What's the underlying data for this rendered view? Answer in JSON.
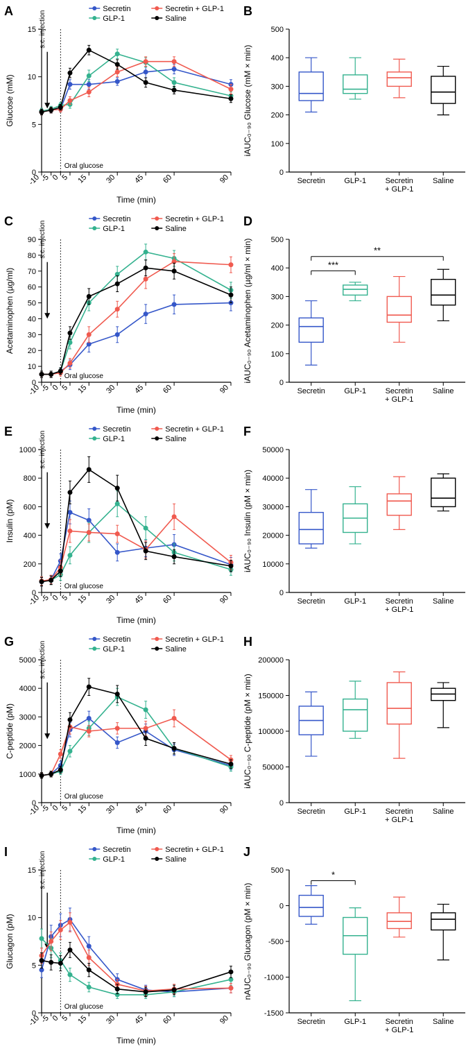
{
  "colors": {
    "secretin": "#3557c9",
    "glp1": "#34b28f",
    "combo": "#f05a4f",
    "saline": "#000000",
    "axis": "#000000"
  },
  "line_x": [
    -10,
    -5,
    0,
    5,
    15,
    30,
    45,
    60,
    90
  ],
  "line_x_ticks": [
    -10,
    -5,
    0,
    5,
    15,
    30,
    45,
    60,
    90
  ],
  "line_x_label": "Time (min)",
  "line_annot_injection": "s.c. injection",
  "line_annot_oral": "Oral glucose",
  "legend_labels": {
    "secretin": "Secretin",
    "glp1": "GLP-1",
    "combo": "Secretin + GLP-1",
    "saline": "Saline"
  },
  "box_categories": [
    "Secretin",
    "GLP-1",
    "Secretin\n+ GLP-1",
    "Saline"
  ],
  "panels": {
    "A": {
      "label": "A",
      "type": "line",
      "ylabel": "Glucose (mM)",
      "ylim": [
        0,
        15
      ],
      "yticks": [
        0,
        5,
        10,
        15
      ],
      "series": {
        "secretin": {
          "y": [
            6.4,
            6.5,
            6.6,
            9.2,
            9.2,
            9.5,
            10.5,
            10.8,
            9.2
          ],
          "err": [
            0.3,
            0.3,
            0.3,
            0.5,
            0.5,
            0.4,
            0.6,
            0.5,
            0.5
          ]
        },
        "glp1": {
          "y": [
            6.4,
            6.6,
            7.0,
            7.1,
            10.1,
            12.4,
            11.5,
            9.4,
            8.0
          ],
          "err": [
            0.3,
            0.3,
            0.3,
            0.4,
            0.6,
            0.5,
            0.5,
            0.5,
            0.4
          ]
        },
        "combo": {
          "y": [
            6.3,
            6.5,
            6.6,
            7.5,
            8.4,
            10.5,
            11.6,
            11.6,
            8.7
          ],
          "err": [
            0.3,
            0.3,
            0.3,
            0.4,
            0.5,
            0.5,
            0.5,
            0.5,
            0.5
          ]
        },
        "saline": {
          "y": [
            6.3,
            6.5,
            6.8,
            10.4,
            12.8,
            11.3,
            9.4,
            8.6,
            7.7
          ],
          "err": [
            0.3,
            0.3,
            0.3,
            0.5,
            0.5,
            0.5,
            0.5,
            0.4,
            0.4
          ]
        }
      }
    },
    "B": {
      "label": "B",
      "type": "box",
      "ylabel": "iAUC₀₋₉₀ Glucose (mM × min)",
      "ylim": [
        0,
        500
      ],
      "yticks": [
        0,
        100,
        200,
        300,
        400,
        500
      ],
      "boxes": {
        "secretin": {
          "min": 210,
          "q1": 250,
          "med": 275,
          "q3": 350,
          "max": 400
        },
        "glp1": {
          "min": 255,
          "q1": 275,
          "med": 290,
          "q3": 340,
          "max": 400
        },
        "combo": {
          "min": 260,
          "q1": 300,
          "med": 330,
          "q3": 350,
          "max": 395
        },
        "saline": {
          "min": 200,
          "q1": 240,
          "med": 280,
          "q3": 335,
          "max": 370
        }
      }
    },
    "C": {
      "label": "C",
      "type": "line",
      "ylabel": "Acetaminophen (µg/ml)",
      "ylim": [
        0,
        90
      ],
      "yticks": [
        0,
        10,
        20,
        30,
        40,
        50,
        60,
        70,
        80,
        90
      ],
      "series": {
        "secretin": {
          "y": [
            5,
            5,
            7,
            11,
            24,
            30,
            43,
            49,
            50
          ],
          "err": [
            2,
            2,
            2,
            3,
            5,
            5,
            6,
            6,
            5
          ]
        },
        "glp1": {
          "y": [
            5,
            5,
            7,
            25,
            50,
            68,
            82,
            78,
            58
          ],
          "err": [
            2,
            2,
            2,
            4,
            5,
            5,
            5,
            5,
            5
          ]
        },
        "combo": {
          "y": [
            5,
            5,
            6,
            12,
            30,
            46,
            65,
            76,
            74
          ],
          "err": [
            2,
            2,
            2,
            3,
            5,
            5,
            6,
            5,
            5
          ]
        },
        "saline": {
          "y": [
            5,
            5,
            7,
            31,
            54,
            62,
            72,
            70,
            55
          ],
          "err": [
            2,
            2,
            2,
            4,
            5,
            5,
            5,
            5,
            5
          ]
        }
      }
    },
    "D": {
      "label": "D",
      "type": "box",
      "ylabel": "iAUC₀₋₉₀ Acetaminophen (µg/ml × min)",
      "ylim": [
        0,
        500
      ],
      "yticks": [
        0,
        100,
        200,
        300,
        400,
        500
      ],
      "boxes": {
        "secretin": {
          "min": 60,
          "q1": 140,
          "med": 195,
          "q3": 225,
          "max": 285
        },
        "glp1": {
          "min": 285,
          "q1": 305,
          "med": 325,
          "q3": 340,
          "max": 350
        },
        "combo": {
          "min": 140,
          "q1": 210,
          "med": 235,
          "q3": 300,
          "max": 370
        },
        "saline": {
          "min": 215,
          "q1": 270,
          "med": 305,
          "q3": 360,
          "max": 395
        }
      },
      "sig": [
        {
          "from": 0,
          "to": 1,
          "y": 390,
          "label": "***"
        },
        {
          "from": 0,
          "to": 3,
          "y": 440,
          "label": "**"
        }
      ]
    },
    "E": {
      "label": "E",
      "type": "line",
      "ylabel": "Insulin (pM)",
      "ylim": [
        0,
        1000
      ],
      "yticks": [
        0,
        200,
        400,
        600,
        800,
        1000
      ],
      "series": {
        "secretin": {
          "y": [
            75,
            90,
            220,
            560,
            505,
            280,
            310,
            335,
            195
          ],
          "err": [
            30,
            30,
            50,
            80,
            80,
            60,
            60,
            70,
            50
          ]
        },
        "glp1": {
          "y": [
            80,
            85,
            125,
            260,
            420,
            620,
            450,
            280,
            160
          ],
          "err": [
            30,
            30,
            40,
            60,
            70,
            90,
            80,
            60,
            40
          ]
        },
        "combo": {
          "y": [
            80,
            90,
            175,
            430,
            420,
            410,
            300,
            530,
            210
          ],
          "err": [
            30,
            30,
            50,
            80,
            60,
            60,
            60,
            90,
            50
          ]
        },
        "saline": {
          "y": [
            75,
            85,
            150,
            700,
            860,
            730,
            290,
            250,
            185
          ],
          "err": [
            30,
            30,
            40,
            80,
            90,
            90,
            60,
            50,
            40
          ]
        }
      }
    },
    "F": {
      "label": "F",
      "type": "box",
      "ylabel": "iAUC₀₋₉₀ Insulin (pM × min)",
      "ylim": [
        0,
        50000
      ],
      "yticks": [
        0,
        10000,
        20000,
        30000,
        40000,
        50000
      ],
      "boxes": {
        "secretin": {
          "min": 15500,
          "q1": 17000,
          "med": 22000,
          "q3": 28000,
          "max": 36000
        },
        "glp1": {
          "min": 17000,
          "q1": 21000,
          "med": 26000,
          "q3": 31000,
          "max": 37000
        },
        "combo": {
          "min": 22000,
          "q1": 27000,
          "med": 32000,
          "q3": 34500,
          "max": 40500
        },
        "saline": {
          "min": 28500,
          "q1": 30000,
          "med": 33000,
          "q3": 40000,
          "max": 41500
        }
      }
    },
    "G": {
      "label": "G",
      "type": "line",
      "ylabel": "C-peptide (pM)",
      "ylim": [
        0,
        5000
      ],
      "yticks": [
        0,
        1000,
        2000,
        3000,
        4000,
        5000
      ],
      "series": {
        "secretin": {
          "y": [
            950,
            1000,
            1300,
            2550,
            2950,
            2100,
            2500,
            1850,
            1300
          ],
          "err": [
            100,
            100,
            150,
            250,
            250,
            200,
            250,
            200,
            150
          ]
        },
        "glp1": {
          "y": [
            950,
            1000,
            1100,
            1800,
            2600,
            3700,
            3250,
            1900,
            1250
          ],
          "err": [
            100,
            100,
            120,
            200,
            250,
            300,
            300,
            200,
            150
          ]
        },
        "combo": {
          "y": [
            950,
            1000,
            1700,
            2650,
            2500,
            2600,
            2600,
            2950,
            1500
          ],
          "err": [
            100,
            100,
            150,
            250,
            200,
            200,
            250,
            300,
            150
          ]
        },
        "saline": {
          "y": [
            950,
            1000,
            1150,
            2900,
            4050,
            3800,
            2250,
            1900,
            1350
          ],
          "err": [
            100,
            100,
            120,
            250,
            300,
            300,
            250,
            200,
            150
          ]
        }
      }
    },
    "H": {
      "label": "H",
      "type": "box",
      "ylabel": "iAUC₀₋₉₀ C-peptide (pM × min)",
      "ylim": [
        0,
        200000
      ],
      "yticks": [
        0,
        50000,
        100000,
        150000,
        200000
      ],
      "boxes": {
        "secretin": {
          "min": 65000,
          "q1": 95000,
          "med": 115000,
          "q3": 135000,
          "max": 155000
        },
        "glp1": {
          "min": 90000,
          "q1": 100000,
          "med": 130000,
          "q3": 145000,
          "max": 170000
        },
        "combo": {
          "min": 62000,
          "q1": 110000,
          "med": 132000,
          "q3": 168000,
          "max": 183000
        },
        "saline": {
          "min": 105000,
          "q1": 143000,
          "med": 152000,
          "q3": 160000,
          "max": 168000
        }
      }
    },
    "I": {
      "label": "I",
      "type": "line",
      "ylabel": "Glucagon (pM)",
      "ylim": [
        0,
        15
      ],
      "yticks": [
        0,
        5,
        10,
        15
      ],
      "series": {
        "secretin": {
          "y": [
            4.5,
            8.0,
            9.2,
            9.8,
            7.0,
            3.5,
            2.4,
            2.2,
            2.6
          ],
          "err": [
            0.8,
            1.2,
            1.2,
            1.2,
            1.0,
            0.6,
            0.5,
            0.5,
            0.5
          ]
        },
        "glp1": {
          "y": [
            7.8,
            6.8,
            5.5,
            4.0,
            2.7,
            1.9,
            1.9,
            2.2,
            3.5
          ],
          "err": [
            1.0,
            1.0,
            0.8,
            0.7,
            0.5,
            0.4,
            0.4,
            0.5,
            0.6
          ]
        },
        "combo": {
          "y": [
            6.0,
            7.5,
            8.7,
            9.5,
            5.8,
            3.0,
            2.3,
            2.5,
            2.6
          ],
          "err": [
            0.8,
            1.0,
            1.0,
            1.0,
            0.8,
            0.5,
            0.5,
            0.5,
            0.5
          ]
        },
        "saline": {
          "y": [
            5.5,
            5.3,
            5.2,
            6.6,
            4.5,
            2.5,
            2.2,
            2.4,
            4.3
          ],
          "err": [
            0.8,
            0.8,
            0.8,
            0.8,
            0.7,
            0.5,
            0.5,
            0.5,
            0.6
          ]
        }
      }
    },
    "J": {
      "label": "J",
      "type": "box",
      "ylabel": "nAUC₀₋₉₀ Glucagon (pM × min)",
      "ylim": [
        -1500,
        500
      ],
      "yticks": [
        -1500,
        -1000,
        -500,
        0,
        500
      ],
      "boxes": {
        "secretin": {
          "min": -260,
          "q1": -150,
          "med": -25,
          "q3": 145,
          "max": 280
        },
        "glp1": {
          "min": -1330,
          "q1": -680,
          "med": -420,
          "q3": -165,
          "max": -30
        },
        "combo": {
          "min": -440,
          "q1": -320,
          "med": -220,
          "q3": -100,
          "max": 120
        },
        "saline": {
          "min": -760,
          "q1": -340,
          "med": -190,
          "q3": -100,
          "max": 20
        }
      },
      "sig": [
        {
          "from": 0,
          "to": 1,
          "y": 350,
          "label": "*"
        }
      ]
    }
  }
}
